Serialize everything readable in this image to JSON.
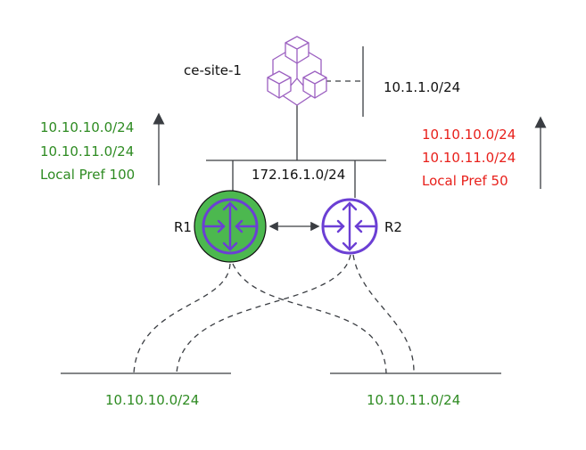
{
  "site": {
    "label": "ce-site-1",
    "lan": "10.1.1.0/24"
  },
  "transit": {
    "label": "172.16.1.0/24"
  },
  "r1": {
    "label": "R1",
    "advert": [
      "10.10.10.0/24",
      "10.10.11.0/24",
      "Local Pref 100"
    ]
  },
  "r2": {
    "label": "R2",
    "advert": [
      "10.10.10.0/24",
      "10.10.11.0/24",
      "Local Pref 50"
    ]
  },
  "networks": {
    "left": "10.10.10.0/24",
    "right": "10.10.11.0/24"
  },
  "colors": {
    "router_fill_r1": "#4cb84f",
    "router_stroke": "#6b3fd4",
    "site_icon": "#9b5fc0",
    "r1_text": "#2e8b22",
    "r2_text": "#e8201b",
    "lines": "#3a3d42"
  }
}
